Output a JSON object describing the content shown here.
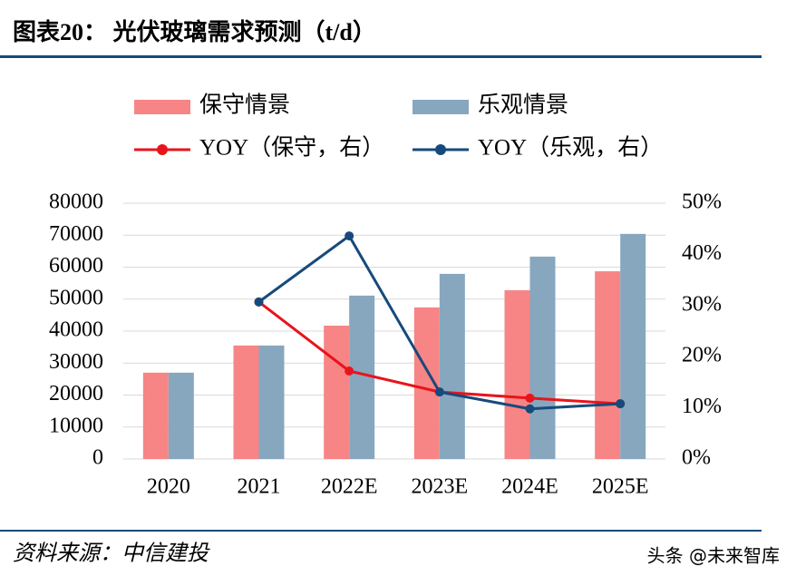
{
  "header": {
    "title": "图表20：  光伏玻璃需求预测（t/d）"
  },
  "footer": {
    "source": "资料来源：中信建投",
    "watermark": "头条 @未来智库"
  },
  "chart_data": {
    "type": "bar",
    "categories": [
      "2020",
      "2021",
      "2022E",
      "2023E",
      "2024E",
      "2025E"
    ],
    "series": [
      {
        "name": "保守情景",
        "color": "#f78585",
        "values": [
          27000,
          35500,
          41700,
          47400,
          52800,
          58700
        ]
      },
      {
        "name": "乐观情景",
        "color": "#87a7bf",
        "values": [
          27000,
          35500,
          51100,
          57900,
          63300,
          70400
        ]
      },
      {
        "name": "YOY（保守，右）",
        "type": "line",
        "axis": "y2",
        "color": "#e8141c",
        "values": [
          null,
          30.7,
          17.2,
          13.1,
          11.9,
          10.8
        ]
      },
      {
        "name": "YOY（乐观，右）",
        "type": "line",
        "axis": "y2",
        "color": "#174a7c",
        "values": [
          null,
          30.7,
          43.6,
          13.1,
          9.8,
          10.8
        ]
      }
    ],
    "ylim": [
      0,
      80000
    ],
    "yticks": [
      0,
      10000,
      20000,
      30000,
      40000,
      50000,
      60000,
      70000,
      80000
    ],
    "y2lim": [
      0,
      50
    ],
    "y2ticks": [
      {
        "value": 0,
        "label": "0%"
      },
      {
        "value": 10,
        "label": "10%"
      },
      {
        "value": 20,
        "label": "20%"
      },
      {
        "value": 30,
        "label": "30%"
      },
      {
        "value": 40,
        "label": "40%"
      },
      {
        "value": 50,
        "label": "50%"
      }
    ],
    "grid": true
  }
}
